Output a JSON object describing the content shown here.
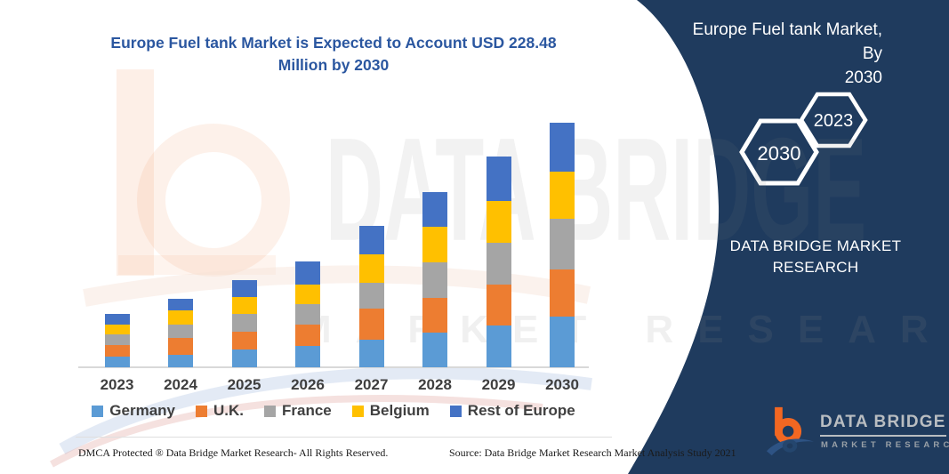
{
  "header": {
    "title_line1": "Europe Fuel tank Market is Expected to Account USD 228.48",
    "title_line2": "Million by 2030"
  },
  "chart_data": {
    "type": "bar",
    "stacked": true,
    "title": "Europe Fuel tank Market is Expected to Account USD 228.48 Million by 2030",
    "unit": "USD Million",
    "categories": [
      "2023",
      "2024",
      "2025",
      "2026",
      "2027",
      "2028",
      "2029",
      "2030"
    ],
    "series": [
      {
        "name": "Germany",
        "color": "#5B9BD5",
        "values": [
          9.6,
          11.9,
          16.6,
          19.9,
          25.5,
          32.1,
          38.8,
          47.1
        ]
      },
      {
        "name": "U.K.",
        "color": "#ED7D31",
        "values": [
          11.1,
          15.2,
          16.6,
          19.7,
          29.1,
          33.0,
          38.8,
          44.3
        ]
      },
      {
        "name": "France",
        "color": "#A5A5A5",
        "values": [
          9.6,
          13.0,
          16.6,
          19.1,
          24.3,
          33.2,
          38.7,
          47.1
        ]
      },
      {
        "name": "Belgium",
        "color": "#FFC000",
        "values": [
          9.1,
          13.3,
          15.8,
          18.8,
          26.3,
          32.7,
          38.8,
          44.3
        ]
      },
      {
        "name": "Rest of Europe",
        "color": "#4472C4",
        "values": [
          10.3,
          10.6,
          16.0,
          21.4,
          26.8,
          32.7,
          41.5,
          45.7
        ]
      }
    ],
    "totals": [
      49.7,
      64.0,
      81.6,
      98.9,
      132.0,
      163.7,
      196.6,
      228.48
    ],
    "legend_position": "bottom",
    "y_axis_visible": false,
    "x_labels_bold": true
  },
  "panel": {
    "background_color": "#1F3B5E",
    "title_line1": "Europe Fuel tank Market, By",
    "title_line2": "2030",
    "hex_2030": "2030",
    "hex_2023": "2023",
    "brand_line1": "DATA BRIDGE MARKET",
    "brand_line2": "RESEARCH",
    "logo_name": "DATA BRIDGE",
    "logo_sub": "MARKET RESEARCH",
    "logo_orange": "#F26722"
  },
  "watermark": {
    "big_text": "DATA BRIDGE",
    "row_text": "MARKET RESEARCH"
  },
  "footer": {
    "dmca": "DMCA Protected ® Data Bridge Market Research-  All Rights Reserved.",
    "source": "Source: Data Bridge Market Research  Market Analysis Study 2021"
  }
}
